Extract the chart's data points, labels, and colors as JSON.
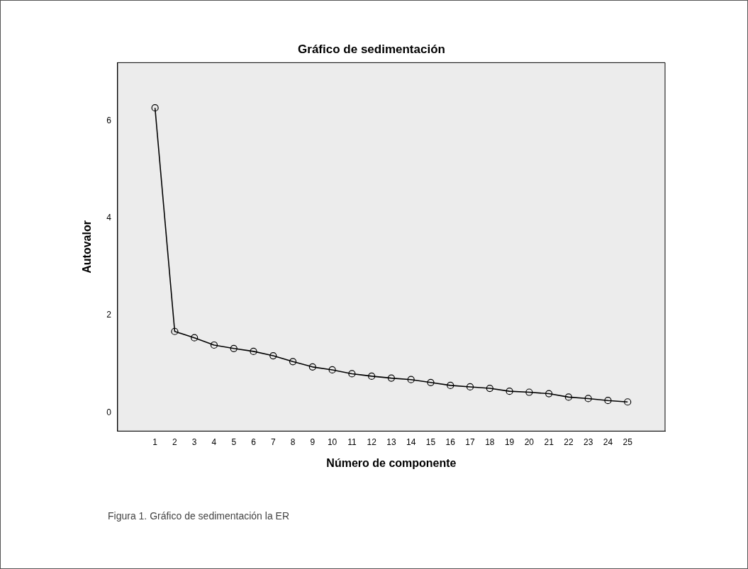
{
  "chart_data": {
    "type": "line",
    "title": "Gráfico de sedimentación",
    "xlabel": "Número de componente",
    "ylabel": "Autovalor",
    "x": [
      1,
      2,
      3,
      4,
      5,
      6,
      7,
      8,
      9,
      10,
      11,
      12,
      13,
      14,
      15,
      16,
      17,
      18,
      19,
      20,
      21,
      22,
      23,
      24,
      25
    ],
    "values": [
      6.27,
      1.67,
      1.54,
      1.39,
      1.32,
      1.26,
      1.17,
      1.05,
      0.94,
      0.88,
      0.8,
      0.75,
      0.71,
      0.68,
      0.62,
      0.56,
      0.53,
      0.5,
      0.44,
      0.42,
      0.39,
      0.32,
      0.29,
      0.25,
      0.22
    ],
    "color": "#000000",
    "marker": "circle",
    "line_style": "solid",
    "xlim": [
      -0.9,
      26.9
    ],
    "xticks": [
      1,
      2,
      3,
      4,
      5,
      6,
      7,
      8,
      9,
      10,
      11,
      12,
      13,
      14,
      15,
      16,
      17,
      18,
      19,
      20,
      21,
      22,
      23,
      24,
      25
    ],
    "ylim": [
      -0.38,
      7.2
    ],
    "yticks": [
      0,
      2,
      4,
      6
    ],
    "grid": false,
    "legend": false,
    "annotations": [
      "Figura 1. Gráfico de sedimentación la ER"
    ]
  }
}
